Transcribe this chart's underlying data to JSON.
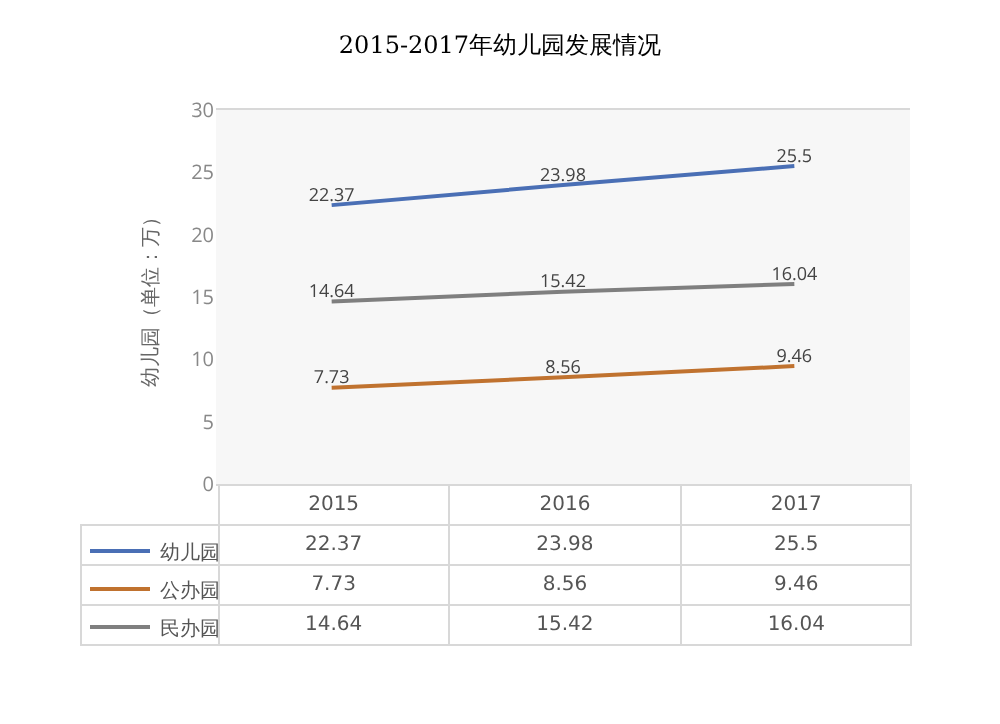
{
  "chart_data": {
    "type": "line",
    "title": "2015-2017年幼儿园发展情况",
    "ylabel": "幼儿园（单位：万）",
    "categories": [
      "2015",
      "2016",
      "2017"
    ],
    "series": [
      {
        "name": "幼儿园",
        "color": "#4a6fb5",
        "values": [
          22.37,
          23.98,
          25.5
        ],
        "value_labels": [
          "22.37",
          "23.98",
          "25.5"
        ]
      },
      {
        "name": "公办园",
        "color": "#c0722f",
        "values": [
          7.73,
          8.56,
          9.46
        ],
        "value_labels": [
          "7.73",
          "8.56",
          "9.46"
        ]
      },
      {
        "name": "民办园",
        "color": "#7f7f7f",
        "values": [
          14.64,
          15.42,
          16.04
        ],
        "value_labels": [
          "14.64",
          "15.42",
          "16.04"
        ]
      }
    ],
    "ylim": [
      0,
      30
    ],
    "yticks": [
      0,
      5,
      10,
      15,
      20,
      25,
      30
    ],
    "annotations": [
      "22.37",
      "23.98",
      "25.5",
      "7.73",
      "8.56",
      "9.46",
      "14.64",
      "15.42",
      "16.04"
    ],
    "grid": false,
    "legend": "bottom left",
    "marker": "none",
    "line_style": "solid"
  }
}
